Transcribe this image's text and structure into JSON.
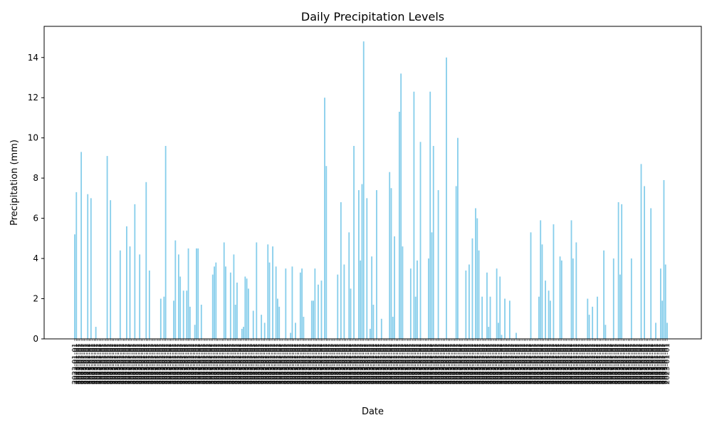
{
  "chart_data": {
    "type": "bar",
    "title": "Daily Precipitation Levels",
    "xlabel": "Date",
    "ylabel": "Precipitation (mm)",
    "ylim": [
      0,
      15.55
    ],
    "yticks": [
      0,
      2,
      4,
      6,
      8,
      10,
      12,
      14
    ],
    "bar_color": "#87ceeb",
    "x_tick_placeholder": "2023-01-01",
    "values": [
      5.2,
      7.3,
      0,
      0,
      9.3,
      0,
      0,
      0,
      7.2,
      0,
      7.0,
      0,
      0,
      0.6,
      0,
      0,
      0,
      0,
      0,
      0,
      9.1,
      0,
      6.9,
      0,
      0,
      0,
      0,
      0,
      4.4,
      0,
      0,
      0,
      5.6,
      0,
      4.6,
      0,
      0,
      6.7,
      0,
      0,
      4.2,
      0,
      0,
      0,
      7.8,
      0,
      3.4,
      0,
      0,
      0,
      0,
      0,
      0,
      2.0,
      0,
      2.1,
      9.6,
      0,
      0,
      0,
      0,
      1.9,
      4.9,
      0,
      4.2,
      3.1,
      0,
      2.4,
      0,
      2.4,
      4.5,
      1.6,
      0,
      0,
      0.7,
      4.5,
      4.5,
      0,
      1.7,
      0,
      0,
      0,
      0,
      0,
      0,
      3.2,
      3.6,
      3.8,
      0,
      0,
      0,
      0,
      4.8,
      3.6,
      0,
      0,
      3.3,
      0,
      4.2,
      1.7,
      2.8,
      0,
      0,
      0.5,
      0.6,
      3.1,
      3.0,
      2.5,
      0,
      0,
      1.4,
      0,
      4.8,
      0,
      0,
      1.2,
      0,
      0.8,
      0,
      4.7,
      3.8,
      0,
      4.6,
      0,
      3.6,
      2.0,
      1.6,
      0,
      0,
      0,
      3.5,
      0,
      0,
      0.3,
      3.6,
      0,
      0.8,
      0,
      0,
      3.3,
      3.5,
      1.1,
      0,
      0,
      0,
      0,
      1.9,
      1.9,
      3.5,
      0,
      2.7,
      0,
      2.9,
      0,
      12.0,
      8.6,
      0,
      0,
      0,
      0,
      0,
      0,
      3.2,
      0,
      6.8,
      0,
      3.7,
      0,
      0,
      5.3,
      2.5,
      0,
      9.6,
      0,
      0,
      7.4,
      3.9,
      7.7,
      14.8,
      0,
      7.0,
      0,
      0.5,
      4.1,
      1.7,
      0,
      7.4,
      0,
      0,
      1.0,
      0,
      0,
      0,
      0,
      8.3,
      7.5,
      1.1,
      5.1,
      0,
      0,
      11.3,
      13.2,
      4.6,
      0,
      0,
      0,
      0,
      3.5,
      0,
      12.3,
      2.1,
      3.9,
      0,
      9.8,
      0,
      0,
      0,
      0,
      4.0,
      12.3,
      5.3,
      9.6,
      0,
      0,
      7.4,
      0,
      0,
      0,
      0,
      14.0,
      0,
      0,
      0,
      0,
      0,
      7.6,
      10.0,
      0,
      0,
      0,
      0,
      3.4,
      0,
      3.7,
      0,
      5.0,
      0,
      6.5,
      6.0,
      4.4,
      0,
      2.1,
      0,
      0,
      3.3,
      0.6,
      2.1,
      0,
      0,
      0,
      3.5,
      0.8,
      3.1,
      0.2,
      0,
      2.0,
      0,
      0,
      1.9,
      0,
      0,
      0,
      0.3,
      0,
      0,
      0,
      0,
      0,
      0,
      0,
      0,
      5.3,
      0,
      0,
      0,
      0,
      2.1,
      5.9,
      4.7,
      0,
      2.9,
      0,
      2.4,
      1.9,
      0,
      5.7,
      0,
      0,
      0,
      4.1,
      3.9,
      0,
      0,
      0,
      0,
      0,
      5.9,
      4.0,
      0,
      4.8,
      0,
      0,
      0,
      0,
      0,
      0,
      2.0,
      1.2,
      0,
      1.6,
      0,
      0,
      2.1,
      0,
      0,
      0,
      4.4,
      0.7,
      0,
      0,
      0,
      0,
      4.0,
      0,
      0,
      6.8,
      3.2,
      6.7,
      0,
      0,
      0,
      0,
      0,
      4.0,
      0,
      0,
      0,
      0,
      0,
      8.7,
      0,
      7.6,
      0,
      0,
      0,
      6.5,
      0,
      0,
      0.8,
      0,
      0,
      3.5,
      1.9,
      7.9,
      3.7,
      0.8
    ]
  }
}
